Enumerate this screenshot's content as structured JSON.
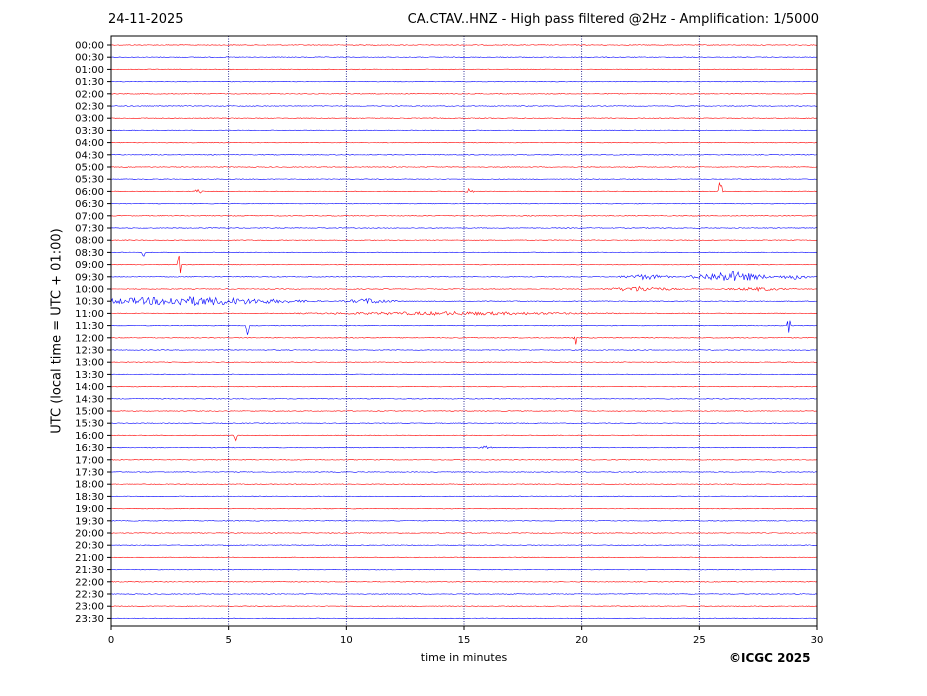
{
  "header": {
    "date": "24-11-2025",
    "title": "CA.CTAV..HNZ - High pass filtered @2Hz - Amplification: 1/5000"
  },
  "footer": {
    "copyright": "©ICGC 2025"
  },
  "colors": {
    "red_trace": "#ff0000",
    "blue_trace": "#0000ff",
    "grid": "#000080",
    "frame": "#000000"
  },
  "chart_data": {
    "type": "line",
    "subtype": "helicorder",
    "title": "CA.CTAV..HNZ - High pass filtered @2Hz - Amplification: 1/5000",
    "xlabel": "time in minutes",
    "ylabel": "UTC (local time = UTC + 01:00)",
    "xlim": [
      0,
      30
    ],
    "x_ticks": [
      0,
      5,
      10,
      15,
      20,
      25,
      30
    ],
    "grid": "vertical dotted at 5-minute intervals",
    "rows": [
      "00:00",
      "00:30",
      "01:00",
      "01:30",
      "02:00",
      "02:30",
      "03:00",
      "03:30",
      "04:00",
      "04:30",
      "05:00",
      "05:30",
      "06:00",
      "06:30",
      "07:00",
      "07:30",
      "08:00",
      "08:30",
      "09:00",
      "09:30",
      "10:00",
      "10:30",
      "11:00",
      "11:30",
      "12:00",
      "12:30",
      "13:00",
      "13:30",
      "14:00",
      "14:30",
      "15:00",
      "15:30",
      "16:00",
      "16:30",
      "17:00",
      "17:30",
      "18:00",
      "18:30",
      "19:00",
      "19:30",
      "20:00",
      "20:30",
      "21:00",
      "21:30",
      "22:00",
      "22:30",
      "23:00",
      "23:30"
    ],
    "row_colors": [
      "red",
      "blue"
    ],
    "events": [
      {
        "row": "06:00",
        "minute": 3.7,
        "amplitude": 3,
        "width": 0.3
      },
      {
        "row": "06:00",
        "minute": 15.2,
        "amplitude": 3,
        "width": 0.3
      },
      {
        "row": "06:00",
        "minute": 25.9,
        "amplitude": 14,
        "width": 0.15
      },
      {
        "row": "08:30",
        "minute": 1.4,
        "amplitude": 16,
        "width": 0.1
      },
      {
        "row": "09:00",
        "minute": 2.9,
        "amplitude": 18,
        "width": 0.1
      },
      {
        "row": "09:30",
        "minute": 22.7,
        "amplitude": 3,
        "width": 1.5
      },
      {
        "row": "09:30",
        "minute": 26.3,
        "amplitude": 6,
        "width": 2.2
      },
      {
        "row": "09:30",
        "minute": 29.0,
        "amplitude": 3,
        "width": 1.0
      },
      {
        "row": "10:00",
        "minute": 22.5,
        "amplitude": 3,
        "width": 2.0
      },
      {
        "row": "10:00",
        "minute": 27.5,
        "amplitude": 2,
        "width": 2.0
      },
      {
        "row": "10:30",
        "minute": 3.2,
        "amplitude": 5,
        "width": 6.5
      },
      {
        "row": "10:30",
        "minute": 11.0,
        "amplitude": 3,
        "width": 1.5
      },
      {
        "row": "11:00",
        "minute": 14.5,
        "amplitude": 2,
        "width": 9.0
      },
      {
        "row": "11:30",
        "minute": 5.8,
        "amplitude": 10,
        "width": 0.1
      },
      {
        "row": "11:30",
        "minute": 28.8,
        "amplitude": 18,
        "width": 0.1
      },
      {
        "row": "12:00",
        "minute": 19.7,
        "amplitude": 14,
        "width": 0.1
      },
      {
        "row": "16:00",
        "minute": 5.3,
        "amplitude": 12,
        "width": 0.1
      },
      {
        "row": "16:30",
        "minute": 15.9,
        "amplitude": 3,
        "width": 0.4
      }
    ]
  }
}
